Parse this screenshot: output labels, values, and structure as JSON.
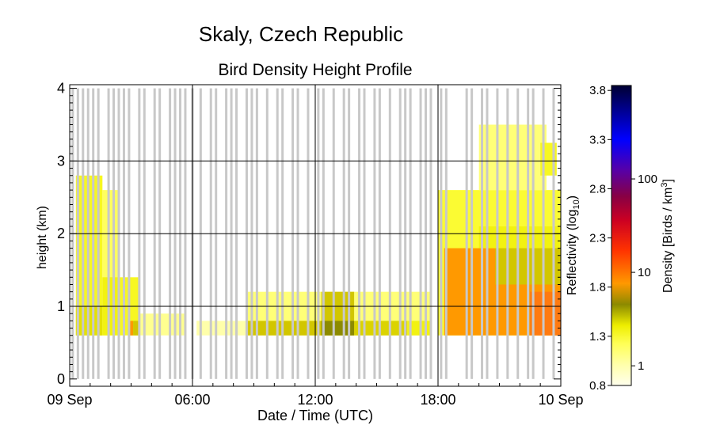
{
  "suptitle": "Skaly, Czech Republic",
  "chart_data": {
    "type": "heatmap",
    "title": "Bird Density Height Profile",
    "xlabel": "Date / Time (UTC)",
    "ylabel": "height (km)",
    "x_unit": "hours since 09 Sep 00:00 UTC",
    "xlim": [
      0,
      24
    ],
    "ylim": [
      -0.1,
      4.05
    ],
    "xticks": [
      {
        "v": 0,
        "label": "09 Sep"
      },
      {
        "v": 6,
        "label": "06:00"
      },
      {
        "v": 12,
        "label": "12:00"
      },
      {
        "v": 18,
        "label": "18:00"
      },
      {
        "v": 24,
        "label": "10 Sep"
      }
    ],
    "yticks": [
      0,
      1,
      2,
      3,
      4
    ],
    "grid": true,
    "colorbar": {
      "left_label": "Reflectivity (log",
      "left_label_sub": "10",
      "left_label_end": ")",
      "right_label": "Density [Birds / km",
      "right_label_sup": "3",
      "right_label_end": "]",
      "reflectivity_ticks": [
        "0.8",
        "1.3",
        "1.8",
        "2.3",
        "2.8",
        "3.3",
        "3.8"
      ],
      "density_ticks": [
        "1",
        "10",
        "100"
      ],
      "range": [
        0.8,
        3.85
      ],
      "colors": [
        "#ffffee",
        "#ffff66",
        "#e8e800",
        "#8c8a00",
        "#ff9900",
        "#ff2200",
        "#880044",
        "#5500aa",
        "#0000ff",
        "#000033"
      ]
    },
    "no_data_scans_hours": [
      0.15,
      0.4,
      0.65,
      0.9,
      1.15,
      1.4,
      1.9,
      2.15,
      2.4,
      2.65,
      2.9,
      3.4,
      3.65,
      4.15,
      4.4,
      4.9,
      5.15,
      5.4,
      5.65,
      6.0,
      6.4,
      6.9,
      7.15,
      7.65,
      7.9,
      8.15,
      8.65,
      8.9,
      9.15,
      9.65,
      10.15,
      10.4,
      10.9,
      11.15,
      11.65,
      12.15,
      12.4,
      12.9,
      13.4,
      13.65,
      14.15,
      14.4,
      14.9,
      15.15,
      15.65,
      16.15,
      16.4,
      16.65,
      17.15,
      17.4,
      17.65,
      18.15,
      18.4,
      19.4,
      19.65,
      20.15,
      20.4,
      20.9,
      21.4,
      21.9,
      22.4,
      22.65,
      23.15,
      23.65
    ],
    "density_blocks": [
      {
        "x0": 0.3,
        "x1": 1.6,
        "y0": 0.6,
        "y1": 2.8,
        "refl": 1.3
      },
      {
        "x0": 0.3,
        "x1": 1.6,
        "y0": 0.6,
        "y1": 1.0,
        "refl": 1.45
      },
      {
        "x0": 1.6,
        "x1": 2.4,
        "y0": 0.6,
        "y1": 2.6,
        "refl": 1.15
      },
      {
        "x0": 1.6,
        "x1": 2.4,
        "y0": 0.6,
        "y1": 1.4,
        "refl": 1.35
      },
      {
        "x0": 2.4,
        "x1": 3.4,
        "y0": 0.6,
        "y1": 1.4,
        "refl": 1.3
      },
      {
        "x0": 2.9,
        "x1": 3.1,
        "y0": 0.6,
        "y1": 0.8,
        "refl": 1.75
      },
      {
        "x0": 3.1,
        "x1": 3.35,
        "y0": 0.6,
        "y1": 0.8,
        "refl": 1.55
      },
      {
        "x0": 3.4,
        "x1": 5.7,
        "y0": 0.6,
        "y1": 0.9,
        "refl": 1.05
      },
      {
        "x0": 6.2,
        "x1": 8.6,
        "y0": 0.6,
        "y1": 0.8,
        "refl": 1.0
      },
      {
        "x0": 8.6,
        "x1": 17.6,
        "y0": 0.6,
        "y1": 1.2,
        "refl": 1.1
      },
      {
        "x0": 8.6,
        "x1": 12.5,
        "y0": 0.6,
        "y1": 0.8,
        "refl": 1.55
      },
      {
        "x0": 12.3,
        "x1": 13.9,
        "y0": 0.6,
        "y1": 1.2,
        "refl": 1.55
      },
      {
        "x0": 13.9,
        "x1": 16.5,
        "y0": 0.6,
        "y1": 0.8,
        "refl": 1.5
      },
      {
        "x0": 12.3,
        "x1": 13.9,
        "y0": 0.6,
        "y1": 0.8,
        "refl": 1.65
      },
      {
        "x0": 16.5,
        "x1": 17.6,
        "y0": 0.6,
        "y1": 0.8,
        "refl": 1.35
      },
      {
        "x0": 18.0,
        "x1": 24.0,
        "y0": 0.6,
        "y1": 2.6,
        "refl": 1.25
      },
      {
        "x0": 18.3,
        "x1": 24.0,
        "y0": 0.6,
        "y1": 1.8,
        "refl": 1.75
      },
      {
        "x0": 20.8,
        "x1": 24.0,
        "y0": 1.3,
        "y1": 1.8,
        "refl": 1.55
      },
      {
        "x0": 22.5,
        "x1": 24.0,
        "y0": 0.6,
        "y1": 1.2,
        "refl": 1.9
      },
      {
        "x0": 20.0,
        "x1": 24.0,
        "y0": 1.8,
        "y1": 2.1,
        "refl": 1.35
      },
      {
        "x0": 20.0,
        "x1": 23.3,
        "y0": 2.6,
        "y1": 3.5,
        "refl": 1.1
      },
      {
        "x0": 23.0,
        "x1": 23.8,
        "y0": 2.8,
        "y1": 3.25,
        "refl": 1.3
      }
    ]
  }
}
